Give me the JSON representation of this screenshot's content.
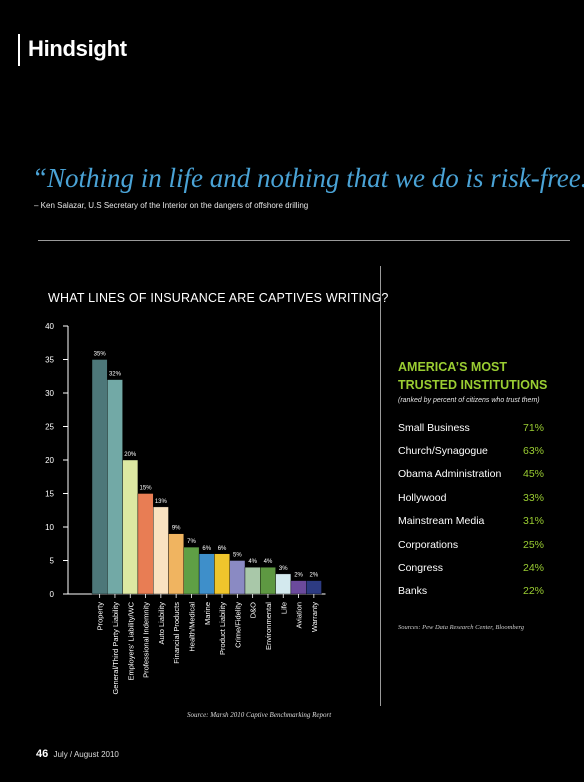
{
  "header": {
    "section_title": "Hindsight"
  },
  "quote": {
    "text": "“Nothing in life and nothing that we do is risk-free.”",
    "attribution": "– Ken Salazar, U.S Secretary of the Interior on the dangers of offshore drilling"
  },
  "chart_data": {
    "type": "bar",
    "title": "WHAT LINES OF INSURANCE ARE CAPTIVES WRITING?",
    "categories": [
      "Property",
      "General/Third Party Liability",
      "Employers' Liability/WC",
      "Professional Indemnity",
      "Auto Liability",
      "Financial Products",
      "Health/Medical",
      "Marine",
      "Product Liability",
      "Crime/Fidelity",
      "D&O",
      "Environmental",
      "Life",
      "Aviation",
      "Warranty"
    ],
    "values": [
      35,
      32,
      20,
      15,
      13,
      9,
      7,
      6,
      6,
      5,
      4,
      4,
      3,
      2,
      2
    ],
    "value_labels": [
      "35%",
      "32%",
      "20%",
      "15%",
      "13%",
      "9%",
      "7%",
      "6%",
      "6%",
      "5%",
      "4%",
      "4%",
      "3%",
      "2%",
      "2%"
    ],
    "colors": [
      "#4d7779",
      "#72a9a6",
      "#dde8a2",
      "#e87d54",
      "#f9e2c1",
      "#f0b460",
      "#5f9f45",
      "#3e8fca",
      "#efc52c",
      "#8a8ac3",
      "#a9c8a9",
      "#5e9842",
      "#d3e9ee",
      "#6b4a9c",
      "#2d3b82"
    ],
    "ylim": [
      0,
      40
    ],
    "yticks": [
      "0",
      "5",
      "10",
      "15",
      "20",
      "25",
      "30",
      "35",
      "40"
    ],
    "source": "Source: Marsh 2010 Captive Benchmarking Report"
  },
  "trust": {
    "title": "AMERICA’S MOST TRUSTED INSTITUTIONS",
    "subtitle": "(ranked by percent of citizens who trust them)",
    "rows": [
      {
        "name": "Small Business",
        "pct": "71%"
      },
      {
        "name": "Church/Synagogue",
        "pct": "63%"
      },
      {
        "name": "Obama Administration",
        "pct": "45%"
      },
      {
        "name": "Hollywood",
        "pct": "33%"
      },
      {
        "name": "Mainstream Media",
        "pct": "31%"
      },
      {
        "name": "Corporations",
        "pct": "25%"
      },
      {
        "name": "Congress",
        "pct": "24%"
      },
      {
        "name": "Banks",
        "pct": "22%"
      }
    ],
    "source": "Sources: Pew Data Research Center, Bloomberg",
    "accent_color": "#9acd32"
  },
  "footer": {
    "page_number": "46",
    "issue": "July / August 2010"
  }
}
